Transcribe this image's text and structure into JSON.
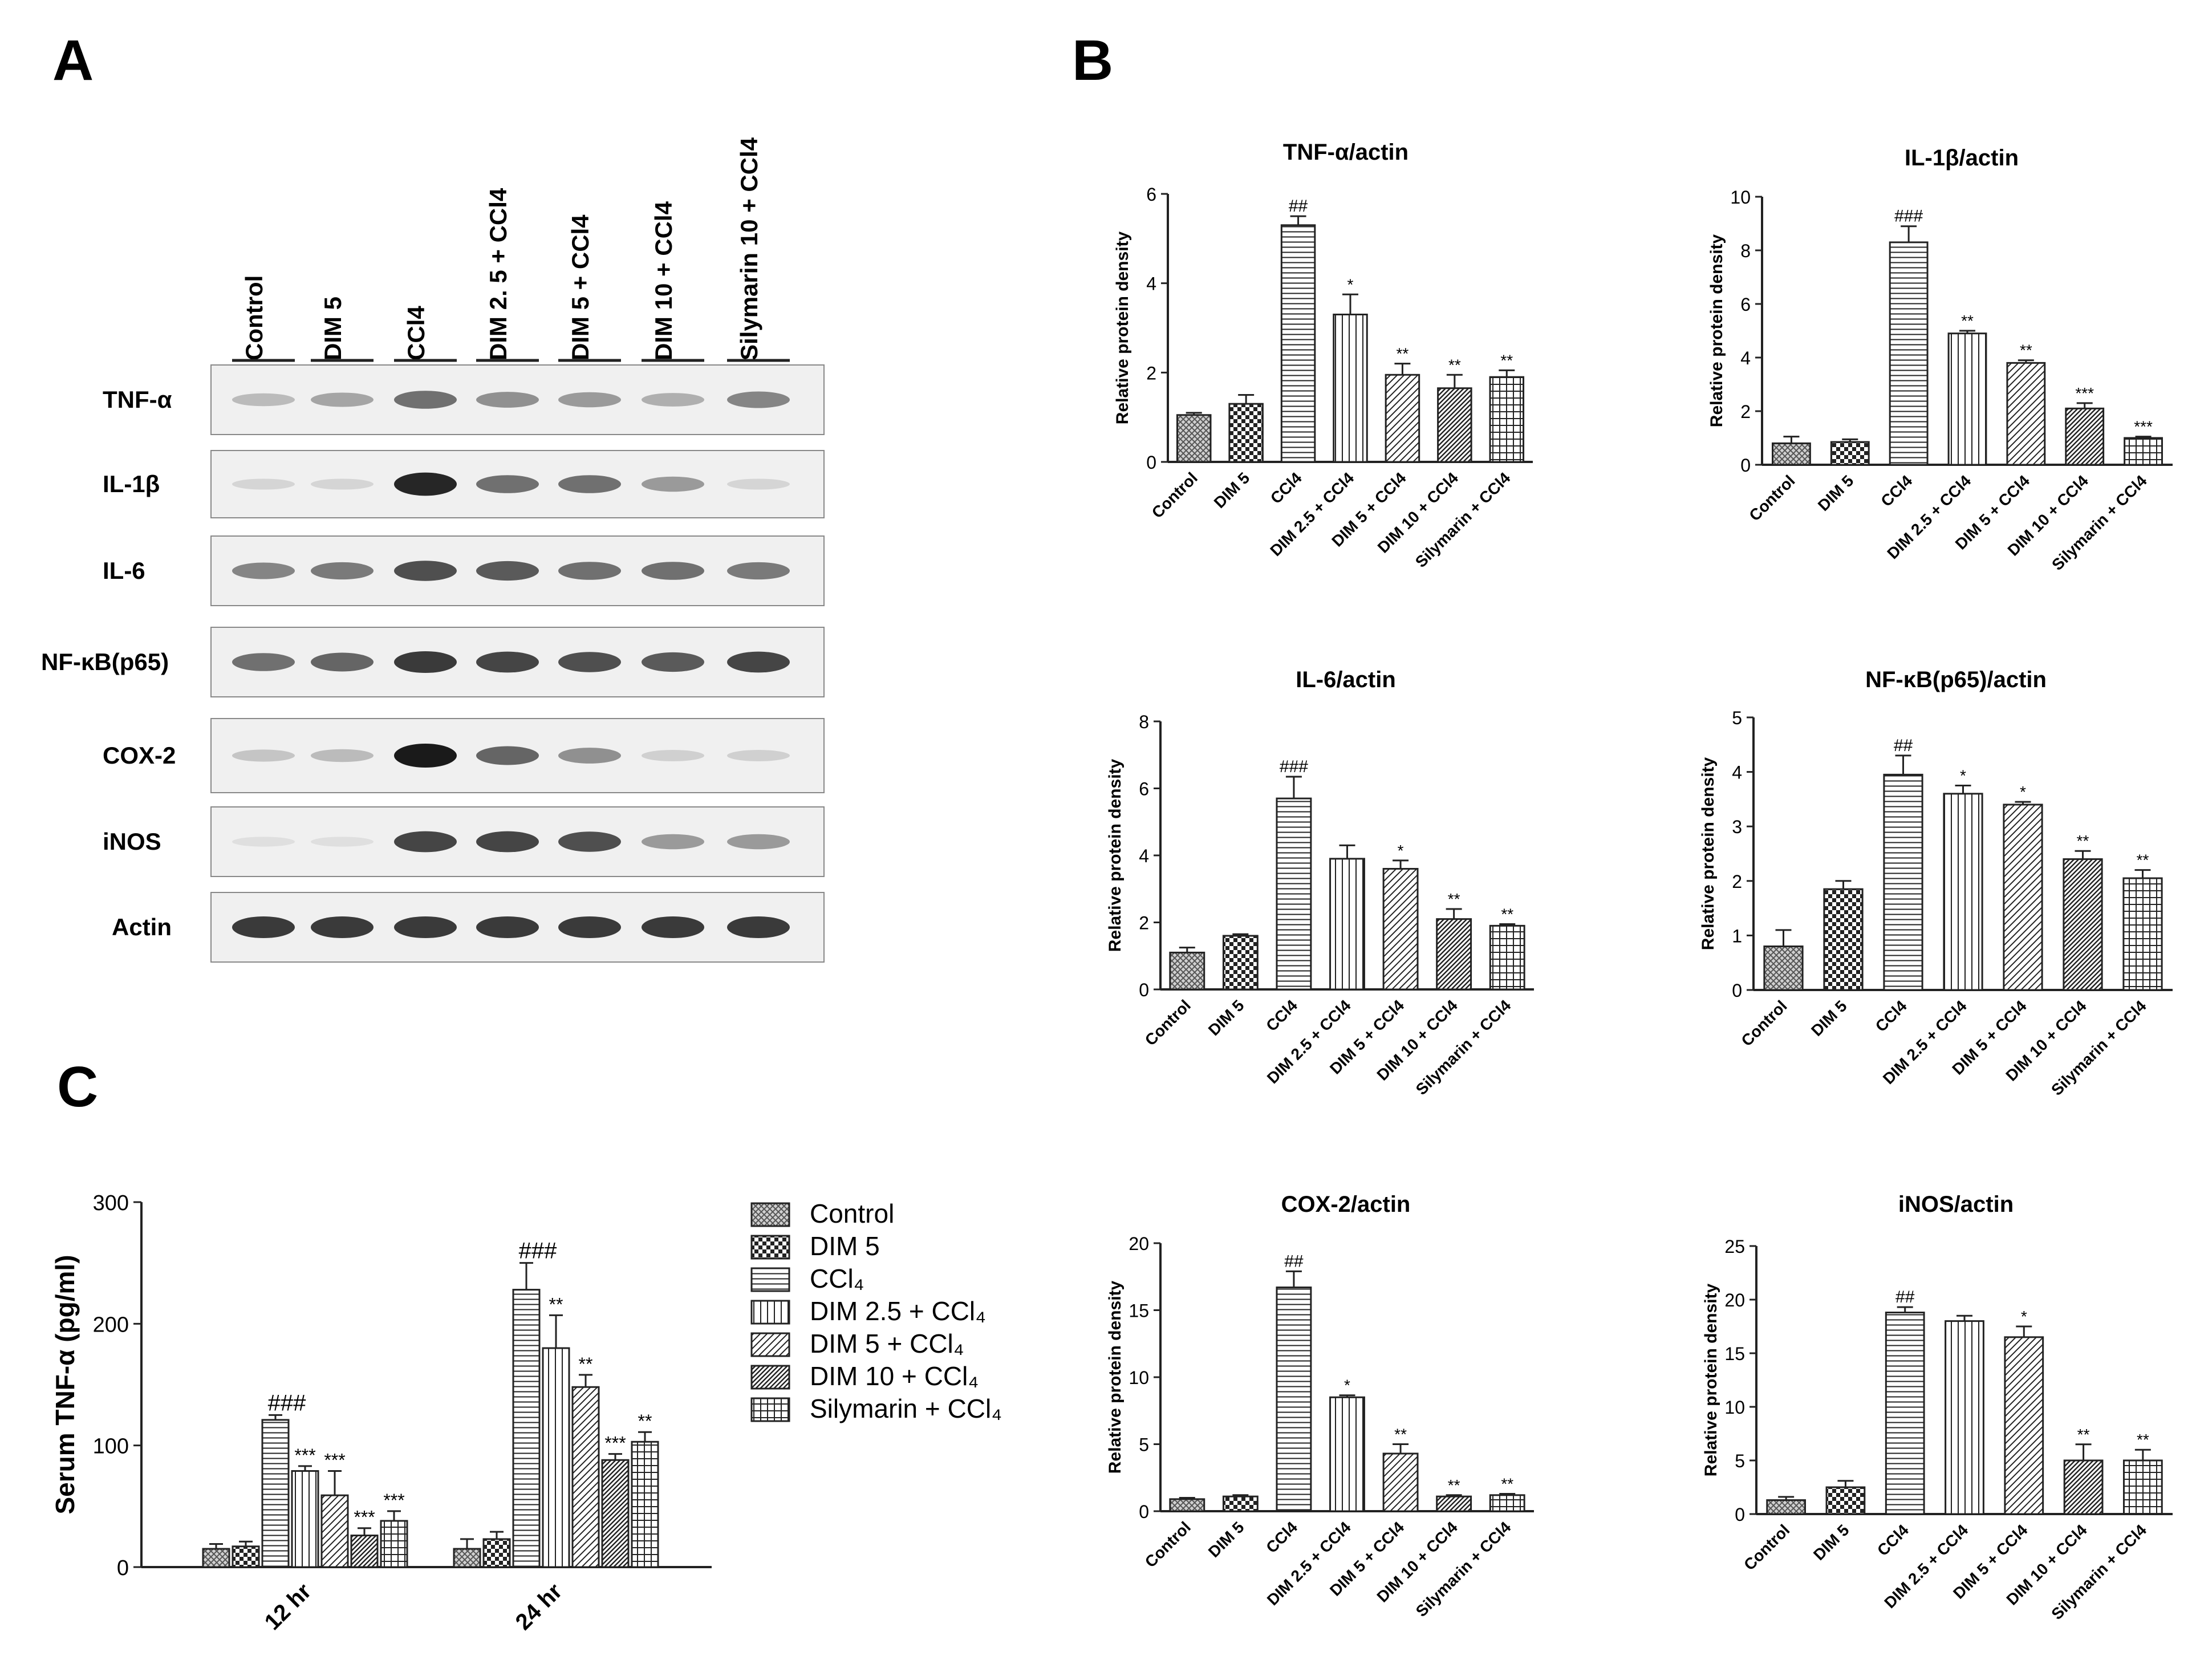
{
  "panels": {
    "A": "A",
    "B": "B",
    "C": "C"
  },
  "colors": {
    "bar_fill": "#ffffff",
    "bar_stroke": "#222222",
    "text": "#111111",
    "blot_bg": "#f0f0f0",
    "band": "#1a1a1a"
  },
  "blot": {
    "lanes": [
      "Control",
      "DIM 5",
      "CCl4",
      "DIM 2. 5 + CCl4",
      "DIM 5 + CCl4",
      "DIM 10 + CCl4",
      "Silymarin 10 + CCl4"
    ],
    "rows": [
      {
        "label": "TNF-α",
        "intensity": [
          0.25,
          0.35,
          0.6,
          0.45,
          0.4,
          0.3,
          0.5
        ]
      },
      {
        "label": "IL-1β",
        "intensity": [
          0.12,
          0.12,
          0.95,
          0.6,
          0.6,
          0.4,
          0.12
        ]
      },
      {
        "label": "IL-6",
        "intensity": [
          0.5,
          0.55,
          0.75,
          0.7,
          0.6,
          0.6,
          0.55
        ]
      },
      {
        "label": "NF-κB(p65)",
        "intensity": [
          0.6,
          0.65,
          0.85,
          0.8,
          0.75,
          0.7,
          0.8
        ]
      },
      {
        "label": "COX-2",
        "intensity": [
          0.2,
          0.25,
          1.0,
          0.65,
          0.45,
          0.15,
          0.15
        ]
      },
      {
        "label": "iNOS",
        "intensity": [
          0.05,
          0.05,
          0.8,
          0.8,
          0.75,
          0.4,
          0.4
        ]
      },
      {
        "label": "Actin",
        "intensity": [
          0.85,
          0.85,
          0.85,
          0.85,
          0.85,
          0.85,
          0.85
        ]
      }
    ]
  },
  "chart_data": [
    {
      "type": "bar",
      "panel": "B",
      "title": "TNF-α/actin",
      "ylabel": "Relative protein density",
      "categories": [
        "Control",
        "DIM 5",
        "CCl4",
        "DIM 2.5 + CCl4",
        "DIM 5 + CCl4",
        "DIM 10 + CCl4",
        "Silymarin + CCl4"
      ],
      "values": [
        1.05,
        1.3,
        5.3,
        3.3,
        1.95,
        1.65,
        1.9
      ],
      "errors": [
        0.05,
        0.2,
        0.2,
        0.45,
        0.25,
        0.3,
        0.15
      ],
      "annotations": [
        "",
        "",
        "##",
        "*",
        "**",
        "**",
        "**"
      ],
      "ylim": [
        0,
        6
      ],
      "yticks": [
        0,
        2,
        4,
        6
      ]
    },
    {
      "type": "bar",
      "panel": "B",
      "title": "IL-1β/actin",
      "ylabel": "Relative protein density",
      "categories": [
        "Control",
        "DIM 5",
        "CCl4",
        "DIM 2.5 + CCl4",
        "DIM 5 + CCl4",
        "DIM 10 + CCl4",
        "Silymarin + CCl4"
      ],
      "values": [
        0.8,
        0.85,
        8.3,
        4.9,
        3.8,
        2.1,
        1.0
      ],
      "errors": [
        0.25,
        0.1,
        0.6,
        0.1,
        0.1,
        0.2,
        0.05
      ],
      "annotations": [
        "",
        "",
        "###",
        "**",
        "**",
        "***",
        "***"
      ],
      "ylim": [
        0,
        10
      ],
      "yticks": [
        0,
        2,
        4,
        6,
        8,
        10
      ]
    },
    {
      "type": "bar",
      "panel": "B",
      "title": "IL-6/actin",
      "ylabel": "Relative protein density",
      "categories": [
        "Control",
        "DIM 5",
        "CCl4",
        "DIM 2.5 + CCl4",
        "DIM 5 + CCl4",
        "DIM 10 + CCl4",
        "Silymarin + CCl4"
      ],
      "values": [
        1.1,
        1.6,
        5.7,
        3.9,
        3.6,
        2.1,
        1.9
      ],
      "errors": [
        0.15,
        0.05,
        0.65,
        0.4,
        0.25,
        0.3,
        0.05
      ],
      "annotations": [
        "",
        "",
        "###",
        "",
        "*",
        "**",
        "**"
      ],
      "ylim": [
        0,
        8
      ],
      "yticks": [
        0,
        2,
        4,
        6,
        8
      ]
    },
    {
      "type": "bar",
      "panel": "B",
      "title": "NF-κB(p65)/actin",
      "ylabel": "Relative protein density",
      "categories": [
        "Control",
        "DIM 5",
        "CCl4",
        "DIM 2.5 + CCl4",
        "DIM 5 + CCl4",
        "DIM 10 + CCl4",
        "Silymarin + CCl4"
      ],
      "values": [
        0.8,
        1.85,
        3.95,
        3.6,
        3.4,
        2.4,
        2.05
      ],
      "errors": [
        0.3,
        0.15,
        0.35,
        0.15,
        0.05,
        0.15,
        0.15
      ],
      "annotations": [
        "",
        "",
        "##",
        "*",
        "*",
        "**",
        "**"
      ],
      "ylim": [
        0,
        5
      ],
      "yticks": [
        0,
        1,
        2,
        3,
        4,
        5
      ]
    },
    {
      "type": "bar",
      "panel": "B",
      "title": "COX-2/actin",
      "ylabel": "Relative protein density",
      "categories": [
        "Control",
        "DIM 5",
        "CCl4",
        "DIM 2.5 + CCl4",
        "DIM 5 + CCl4",
        "DIM 10 + CCl4",
        "Silymarin + CCl4"
      ],
      "values": [
        0.9,
        1.1,
        16.7,
        8.5,
        4.3,
        1.1,
        1.2
      ],
      "errors": [
        0.1,
        0.1,
        1.2,
        0.15,
        0.7,
        0.1,
        0.1
      ],
      "annotations": [
        "",
        "",
        "##",
        "*",
        "**",
        "**",
        "**"
      ],
      "ylim": [
        0,
        20
      ],
      "yticks": [
        0,
        5,
        10,
        15,
        20
      ]
    },
    {
      "type": "bar",
      "panel": "B",
      "title": "iNOS/actin",
      "ylabel": "Relative protein density",
      "categories": [
        "Control",
        "DIM 5",
        "CCl4",
        "DIM 2.5 + CCl4",
        "DIM 5 + CCl4",
        "DIM 10 + CCl4",
        "Silymarin + CCl4"
      ],
      "values": [
        1.3,
        2.5,
        18.8,
        18.0,
        16.5,
        5.0,
        5.0
      ],
      "errors": [
        0.3,
        0.6,
        0.5,
        0.5,
        1.0,
        1.5,
        1.0
      ],
      "annotations": [
        "",
        "",
        "##",
        "",
        "*",
        "**",
        "**"
      ],
      "ylim": [
        0,
        25
      ],
      "yticks": [
        0,
        5,
        10,
        15,
        20,
        25
      ]
    },
    {
      "type": "bar",
      "panel": "C",
      "title": "",
      "ylabel": "Serum  TNF-α (pg/ml)",
      "categories": [
        "12 hr",
        "24 hr"
      ],
      "series": [
        {
          "name": "Control",
          "values": [
            15,
            15
          ],
          "errors": [
            4,
            8
          ],
          "annotations": [
            "",
            ""
          ]
        },
        {
          "name": "DIM 5",
          "values": [
            17,
            23
          ],
          "errors": [
            4,
            6
          ],
          "annotations": [
            "",
            ""
          ]
        },
        {
          "name": "CCl₄",
          "values": [
            121,
            228
          ],
          "errors": [
            4,
            22
          ],
          "annotations": [
            "###",
            "###"
          ]
        },
        {
          "name": "DIM 2.5 + CCl₄",
          "values": [
            79,
            180
          ],
          "errors": [
            4,
            27
          ],
          "annotations": [
            "***",
            "**"
          ]
        },
        {
          "name": "DIM 5 + CCl₄",
          "values": [
            59,
            148
          ],
          "errors": [
            20,
            10
          ],
          "annotations": [
            "***",
            "**"
          ]
        },
        {
          "name": "DIM 10 + CCl₄",
          "values": [
            26,
            88
          ],
          "errors": [
            6,
            5
          ],
          "annotations": [
            "***",
            "***"
          ]
        },
        {
          "name": "Silymarin + CCl₄",
          "values": [
            38,
            103
          ],
          "errors": [
            8,
            8
          ],
          "annotations": [
            "***",
            "**"
          ]
        }
      ],
      "ylim": [
        0,
        300
      ],
      "yticks": [
        0,
        100,
        200,
        300
      ]
    }
  ]
}
